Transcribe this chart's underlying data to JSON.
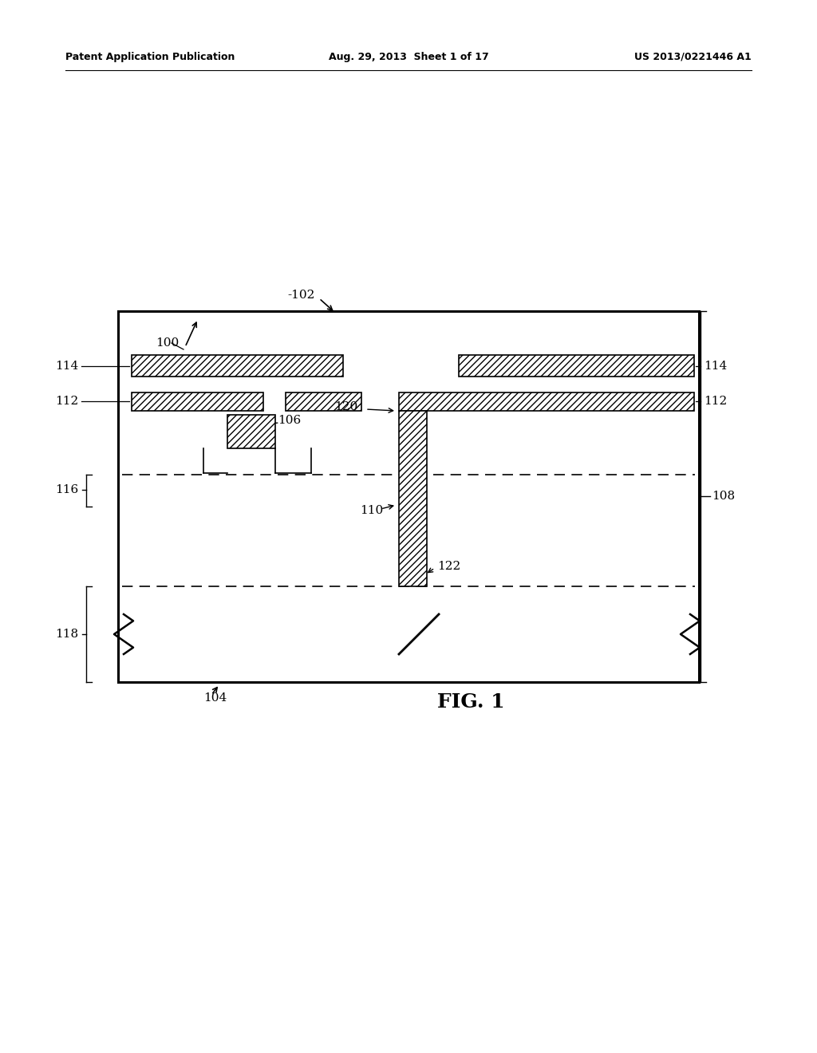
{
  "fig_width": 10.24,
  "fig_height": 13.2,
  "bg_color": "#ffffff",
  "header_left": "Patent Application Publication",
  "header_mid": "Aug. 29, 2013  Sheet 1 of 17",
  "header_right": "US 2013/0221446 A1",
  "fig_label": "FIG. 1",
  "label_100": "100",
  "label_102": "102",
  "label_104": "104",
  "label_106": "106",
  "label_108": "108",
  "label_110": "110",
  "label_112": "112",
  "label_114": "114",
  "label_116": "116",
  "label_118": "118",
  "label_120": "120",
  "label_122": "122",
  "line_color": "#000000",
  "line_width": 1.8
}
